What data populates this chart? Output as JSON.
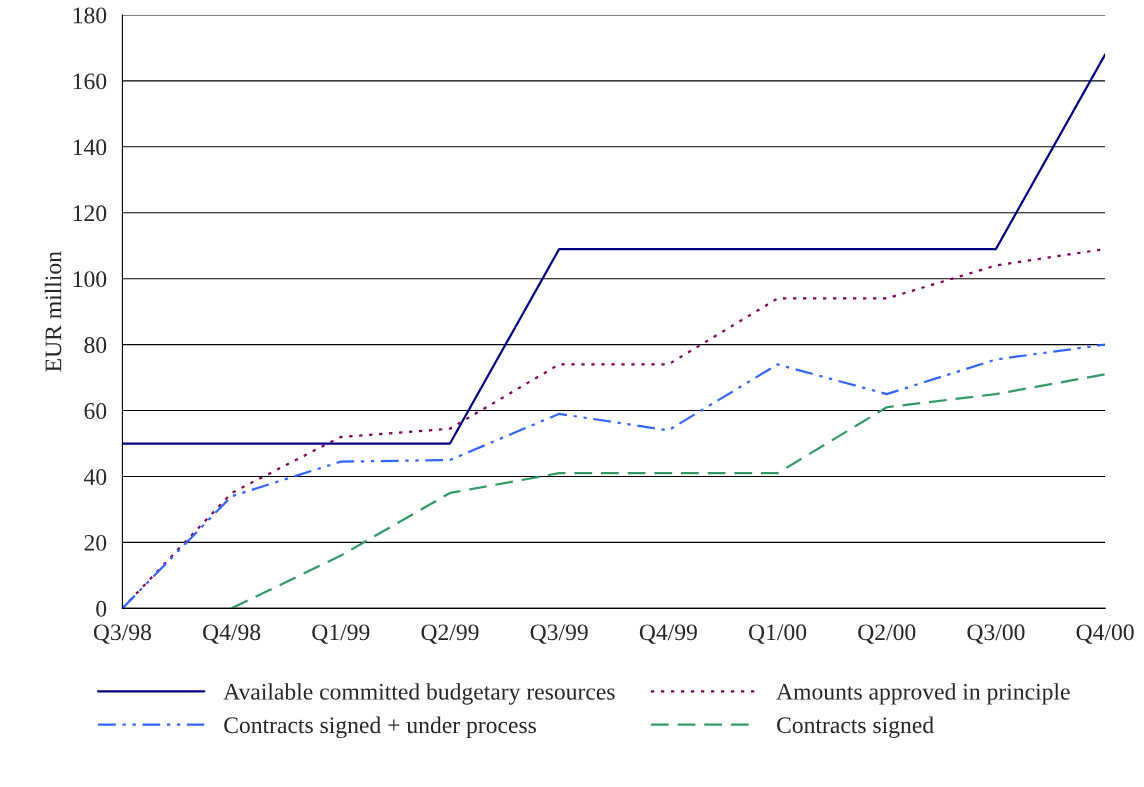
{
  "chart_data": {
    "type": "line",
    "ylabel": "EUR million",
    "categories": [
      "Q3/98",
      "Q4/98",
      "Q1/99",
      "Q2/99",
      "Q3/99",
      "Q4/99",
      "Q1/00",
      "Q2/00",
      "Q3/00",
      "Q4/00"
    ],
    "series": [
      {
        "name": "Available committed budgetary resources",
        "color": "#000080",
        "line_style": "solid",
        "values": [
          50,
          50,
          50,
          50,
          109,
          109,
          109,
          109,
          109,
          168
        ]
      },
      {
        "name": "Amounts approved in principle",
        "color": "#800060",
        "line_style": "dotted",
        "values": [
          0,
          35,
          52,
          54.5,
          74,
          74,
          94,
          94,
          104,
          109
        ]
      },
      {
        "name": "Contracts signed + under process",
        "color": "#3366ff",
        "line_style": "dashdot",
        "values": [
          0,
          34,
          44.5,
          45,
          59,
          54,
          74,
          65,
          75.5,
          80
        ]
      },
      {
        "name": "Contracts signed",
        "color": "#339966",
        "line_style": "dashed",
        "values": [
          null,
          0,
          16,
          35,
          41,
          41,
          41,
          61,
          65,
          71
        ]
      }
    ],
    "ylim": [
      0,
      180
    ],
    "yticks": [
      0,
      20,
      40,
      60,
      80,
      100,
      120,
      140,
      160,
      180
    ],
    "grid": "y",
    "legend": "bottom",
    "marker": "none"
  }
}
